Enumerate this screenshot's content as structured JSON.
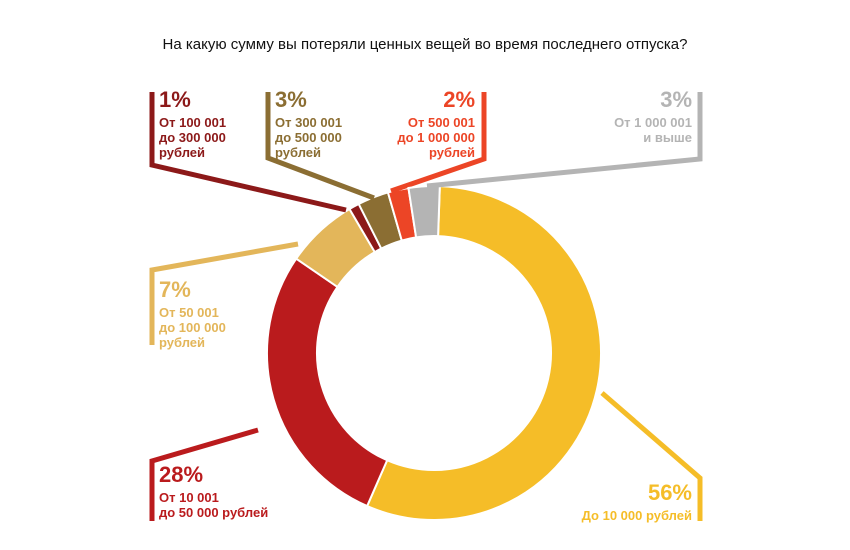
{
  "chart_data": {
    "type": "pie",
    "title": "На какую сумму вы потеряли ценных вещей во время последнего отпуска?",
    "slices": [
      {
        "label_lines": [
          "До 10 000 рублей"
        ],
        "value": 56,
        "pct_text": "56%",
        "color": "#f5bd28"
      },
      {
        "label_lines": [
          "От 10 001",
          "до 50 000 рублей"
        ],
        "value": 28,
        "pct_text": "28%",
        "color": "#ba1b1d"
      },
      {
        "label_lines": [
          "От 50 001",
          "до 100 000",
          "рублей"
        ],
        "value": 7,
        "pct_text": "7%",
        "color": "#e3b65a"
      },
      {
        "label_lines": [
          "От 100 001",
          "до 300 000",
          "рублей"
        ],
        "value": 1,
        "pct_text": "1%",
        "color": "#8c1919"
      },
      {
        "label_lines": [
          "От 300 001",
          "до 500 000",
          "рублей"
        ],
        "value": 3,
        "pct_text": "3%",
        "color": "#8b6e33"
      },
      {
        "label_lines": [
          "От 500 001",
          "до 1 000 000",
          "рублей"
        ],
        "value": 2,
        "pct_text": "2%",
        "color": "#ec4526"
      },
      {
        "label_lines": [
          "От 1 000 001",
          "и выше"
        ],
        "value": 3,
        "pct_text": "3%",
        "color": "#b4b4b4"
      }
    ],
    "legend": "none"
  }
}
